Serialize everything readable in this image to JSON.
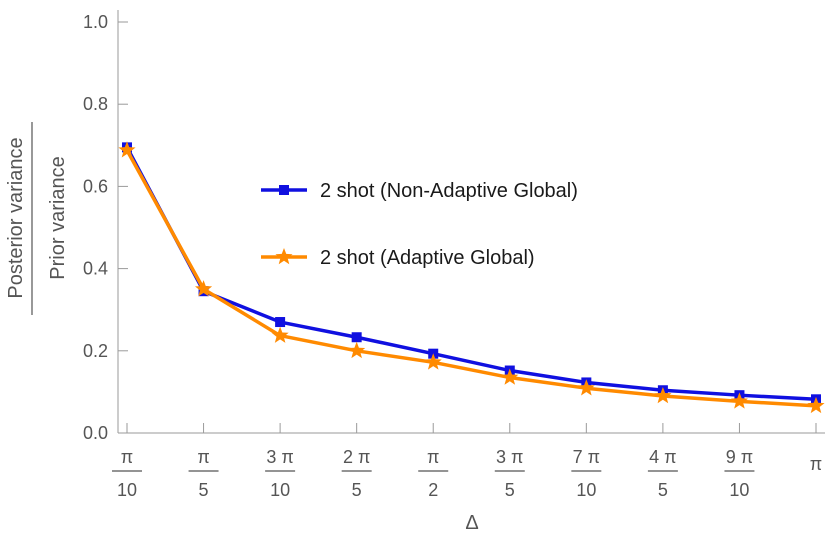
{
  "chart_data": {
    "type": "line",
    "xlabel": "Δ",
    "ylabel": {
      "numerator": "Posterior variance",
      "denominator": "Prior variance"
    },
    "ylim": [
      0,
      1.05
    ],
    "yticks": [
      "0.0",
      "0.2",
      "0.4",
      "0.6",
      "0.8",
      "1.0"
    ],
    "x_ticks": [
      {
        "num": "π",
        "den": "10"
      },
      {
        "num": "π",
        "den": "5"
      },
      {
        "num": "3 π",
        "den": "10"
      },
      {
        "num": "2 π",
        "den": "5"
      },
      {
        "num": "π",
        "den": "2"
      },
      {
        "num": "3 π",
        "den": "5"
      },
      {
        "num": "7 π",
        "den": "10"
      },
      {
        "num": "4 π",
        "den": "5"
      },
      {
        "num": "9 π",
        "den": "10"
      },
      {
        "num": "π",
        "den": ""
      }
    ],
    "x": [
      0.1,
      0.2,
      0.3,
      0.4,
      0.5,
      0.6,
      0.7,
      0.8,
      0.9,
      1.0
    ],
    "x_unit": "π",
    "series": [
      {
        "name": "2 shot (Non-Adaptive Global)",
        "color": "#1010e0",
        "marker": "square",
        "values": [
          0.695,
          0.345,
          0.27,
          0.233,
          0.193,
          0.152,
          0.123,
          0.104,
          0.092,
          0.082
        ]
      },
      {
        "name": "2 shot (Adaptive Global)",
        "color": "#ff8a00",
        "marker": "star",
        "values": [
          0.688,
          0.35,
          0.237,
          0.2,
          0.172,
          0.135,
          0.109,
          0.09,
          0.077,
          0.066
        ]
      }
    ],
    "legend_position": "center-right",
    "grid": false
  }
}
